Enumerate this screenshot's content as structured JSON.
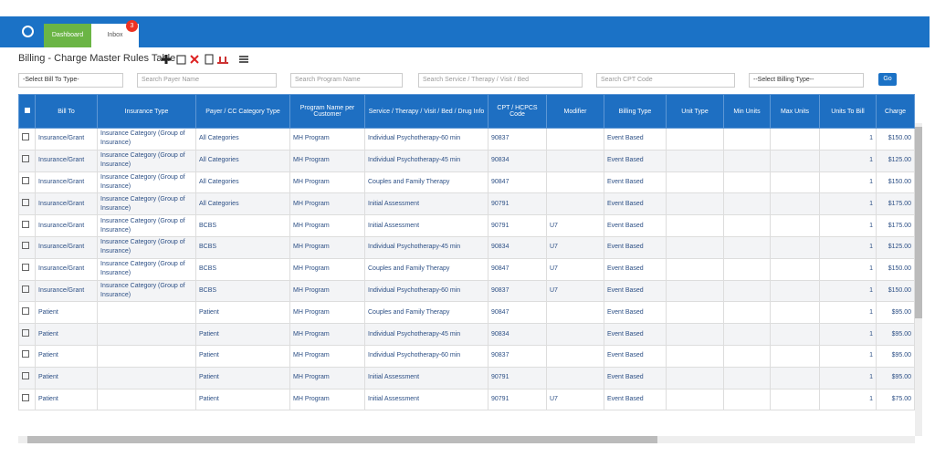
{
  "topbar": {
    "tabs": [
      "Dashboard",
      "Inbox"
    ],
    "badge": "3"
  },
  "header": {
    "title": "Billing - Charge Master Rules Table"
  },
  "filters": {
    "bill_to_select": "-Select Bill To Type-",
    "payer_search": "Search Payer Name",
    "program_search": "Search Program Name",
    "service_search": "Search Service / Therapy / Visit / Bed",
    "cpt_search": "Search CPT Code",
    "billing_type_select": "--Select Billing Type--",
    "go_button": "Go"
  },
  "table": {
    "columns": [
      "Bill To",
      "Insurance Type",
      "Payer / CC Category Type",
      "Program Name per Customer",
      "Service / Therapy / Visit / Bed / Drug Info",
      "CPT / HCPCS Code",
      "Modifier",
      "Billing Type",
      "Unit Type",
      "Min Units",
      "Max Units",
      "Units To Bill",
      "Charge"
    ],
    "rows": [
      [
        "Insurance/Grant",
        "Insurance Category (Group of Insurance)",
        "All Categories",
        "MH Program",
        "Individual Psychotherapy-60 min",
        "90837",
        null,
        "Event Based",
        null,
        null,
        null,
        1,
        "$150.00"
      ],
      [
        "Insurance/Grant",
        "Insurance Category (Group of Insurance)",
        "All Categories",
        "MH Program",
        "Individual Psychotherapy-45 min",
        "90834",
        null,
        "Event Based",
        null,
        null,
        null,
        1,
        "$125.00"
      ],
      [
        "Insurance/Grant",
        "Insurance Category (Group of Insurance)",
        "All Categories",
        "MH Program",
        "Couples and Family Therapy",
        "90847",
        null,
        "Event Based",
        null,
        null,
        null,
        1,
        "$150.00"
      ],
      [
        "Insurance/Grant",
        "Insurance Category (Group of Insurance)",
        "All Categories",
        "MH Program",
        "Initial Assessment",
        "90791",
        null,
        "Event Based",
        null,
        null,
        null,
        1,
        "$175.00"
      ],
      [
        "Insurance/Grant",
        "Insurance Category (Group of Insurance)",
        "BCBS",
        "MH Program",
        "Initial Assessment",
        "90791",
        "U7",
        "Event Based",
        null,
        null,
        null,
        1,
        "$175.00"
      ],
      [
        "Insurance/Grant",
        "Insurance Category (Group of Insurance)",
        "BCBS",
        "MH Program",
        "Individual Psychotherapy-45 min",
        "90834",
        "U7",
        "Event Based",
        null,
        null,
        null,
        1,
        "$125.00"
      ],
      [
        "Insurance/Grant",
        "Insurance Category (Group of Insurance)",
        "BCBS",
        "MH Program",
        "Couples and Family Therapy",
        "90847",
        "U7",
        "Event Based",
        null,
        null,
        null,
        1,
        "$150.00"
      ],
      [
        "Insurance/Grant",
        "Insurance Category (Group of Insurance)",
        "BCBS",
        "MH Program",
        "Individual Psychotherapy-60 min",
        "90837",
        "U7",
        "Event Based",
        null,
        null,
        null,
        1,
        "$150.00"
      ],
      [
        "Patient",
        null,
        "Patient",
        "MH Program",
        "Couples and Family Therapy",
        "90847",
        null,
        "Event Based",
        null,
        null,
        null,
        1,
        "$95.00"
      ],
      [
        "Patient",
        null,
        "Patient",
        "MH Program",
        "Individual Psychotherapy-45 min",
        "90834",
        null,
        "Event Based",
        null,
        null,
        null,
        1,
        "$95.00"
      ],
      [
        "Patient",
        null,
        "Patient",
        "MH Program",
        "Individual Psychotherapy-60 min",
        "90837",
        null,
        "Event Based",
        null,
        null,
        null,
        1,
        "$95.00"
      ],
      [
        "Patient",
        null,
        "Patient",
        "MH Program",
        "Initial Assessment",
        "90791",
        null,
        "Event Based",
        null,
        null,
        null,
        1,
        "$95.00"
      ],
      [
        "Patient",
        null,
        "Patient",
        "MH Program",
        "Initial Assessment",
        "90791",
        "U7",
        "Event Based",
        null,
        null,
        null,
        1,
        "$75.00"
      ]
    ]
  }
}
